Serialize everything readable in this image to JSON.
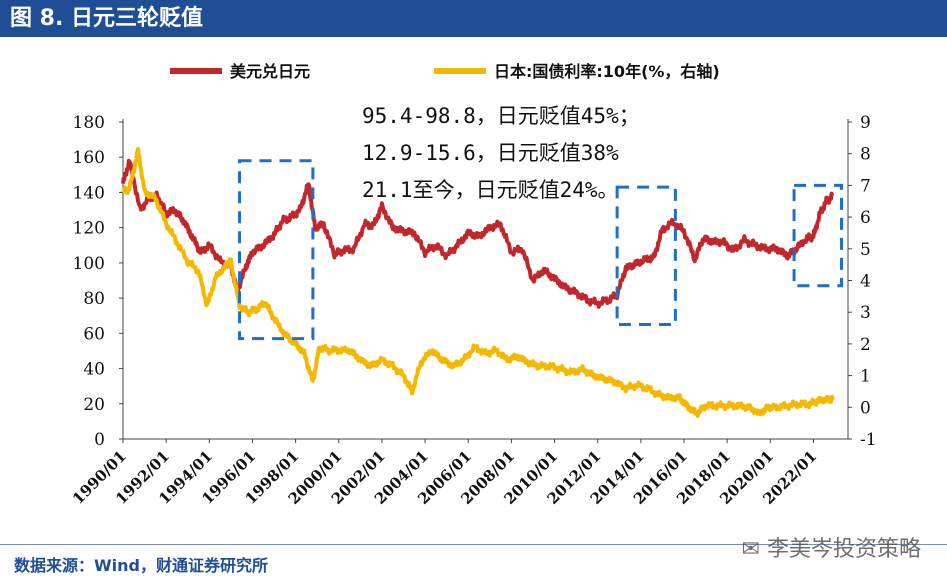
{
  "figure": {
    "title": "图 8. 日元三轮贬值",
    "source": "数据来源：Wind，财通证券研究所",
    "watermark": "李美岑投资策略"
  },
  "chart_data": {
    "type": "line",
    "title": "日元三轮贬值",
    "x_ticks": [
      "1990/01",
      "1992/01",
      "1994/01",
      "1996/01",
      "1998/01",
      "2000/01",
      "2002/01",
      "2004/01",
      "2006/01",
      "2008/01",
      "2010/01",
      "2012/01",
      "2014/01",
      "2016/01",
      "2018/01",
      "2020/01",
      "2022/01"
    ],
    "left_axis": {
      "ylim": [
        0,
        180
      ],
      "ticks": [
        "0",
        "20",
        "40",
        "60",
        "80",
        "100",
        "120",
        "140",
        "160",
        "180"
      ]
    },
    "right_axis": {
      "ylim": [
        -1,
        9
      ],
      "ticks": [
        "-1",
        "0",
        "1",
        "2",
        "3",
        "4",
        "5",
        "6",
        "7",
        "8",
        "9"
      ]
    },
    "series": [
      {
        "name": "美元兑日元",
        "axis": "left",
        "color": "#c0282d",
        "points": [
          [
            1990.0,
            145
          ],
          [
            1990.3,
            158
          ],
          [
            1990.8,
            130
          ],
          [
            1991.2,
            137
          ],
          [
            1991.6,
            138
          ],
          [
            1992.0,
            128
          ],
          [
            1992.4,
            130
          ],
          [
            1992.8,
            124
          ],
          [
            1993.2,
            115
          ],
          [
            1993.6,
            106
          ],
          [
            1994.0,
            110
          ],
          [
            1994.5,
            101
          ],
          [
            1995.0,
            98
          ],
          [
            1995.3,
            84
          ],
          [
            1995.7,
            98
          ],
          [
            1996.0,
            106
          ],
          [
            1996.5,
            110
          ],
          [
            1997.0,
            116
          ],
          [
            1997.4,
            124
          ],
          [
            1997.8,
            126
          ],
          [
            1998.2,
            130
          ],
          [
            1998.6,
            145
          ],
          [
            1998.9,
            120
          ],
          [
            1999.3,
            122
          ],
          [
            1999.8,
            105
          ],
          [
            2000.2,
            107
          ],
          [
            2000.7,
            108
          ],
          [
            2001.2,
            122
          ],
          [
            2001.6,
            121
          ],
          [
            2002.0,
            132
          ],
          [
            2002.5,
            120
          ],
          [
            2003.0,
            118
          ],
          [
            2003.5,
            117
          ],
          [
            2004.0,
            106
          ],
          [
            2004.5,
            110
          ],
          [
            2005.0,
            104
          ],
          [
            2005.5,
            110
          ],
          [
            2006.0,
            117
          ],
          [
            2006.5,
            115
          ],
          [
            2007.0,
            120
          ],
          [
            2007.5,
            122
          ],
          [
            2008.0,
            106
          ],
          [
            2008.5,
            108
          ],
          [
            2009.0,
            90
          ],
          [
            2009.5,
            96
          ],
          [
            2010.0,
            91
          ],
          [
            2010.5,
            86
          ],
          [
            2011.0,
            83
          ],
          [
            2011.5,
            79
          ],
          [
            2012.0,
            77
          ],
          [
            2012.5,
            79
          ],
          [
            2012.9,
            82
          ],
          [
            2013.3,
            97
          ],
          [
            2013.7,
            99
          ],
          [
            2014.2,
            102
          ],
          [
            2014.6,
            103
          ],
          [
            2015.0,
            119
          ],
          [
            2015.5,
            123
          ],
          [
            2016.0,
            118
          ],
          [
            2016.5,
            102
          ],
          [
            2016.9,
            114
          ],
          [
            2017.3,
            112
          ],
          [
            2017.8,
            112
          ],
          [
            2018.3,
            107
          ],
          [
            2018.8,
            113
          ],
          [
            2019.3,
            110
          ],
          [
            2019.8,
            108
          ],
          [
            2020.3,
            108
          ],
          [
            2020.8,
            104
          ],
          [
            2021.2,
            108
          ],
          [
            2021.7,
            114
          ],
          [
            2022.0,
            115
          ],
          [
            2022.3,
            128
          ],
          [
            2022.6,
            135
          ],
          [
            2022.9,
            138
          ]
        ]
      },
      {
        "name": "日本:国债利率:10年(%，右轴)",
        "axis": "right",
        "color": "#f5b800",
        "points": [
          [
            1990.0,
            6.8
          ],
          [
            1990.3,
            6.9
          ],
          [
            1990.7,
            8.1
          ],
          [
            1991.0,
            6.8
          ],
          [
            1991.5,
            6.6
          ],
          [
            1992.0,
            5.8
          ],
          [
            1992.5,
            5.2
          ],
          [
            1993.0,
            4.6
          ],
          [
            1993.5,
            4.3
          ],
          [
            1993.9,
            3.2
          ],
          [
            1994.3,
            4.1
          ],
          [
            1994.8,
            4.5
          ],
          [
            1995.0,
            4.6
          ],
          [
            1995.4,
            3.2
          ],
          [
            1995.8,
            3.0
          ],
          [
            1996.2,
            3.1
          ],
          [
            1996.6,
            3.3
          ],
          [
            1997.0,
            2.8
          ],
          [
            1997.5,
            2.3
          ],
          [
            1998.0,
            2.0
          ],
          [
            1998.4,
            1.7
          ],
          [
            1998.8,
            0.8
          ],
          [
            1999.1,
            1.9
          ],
          [
            1999.5,
            1.8
          ],
          [
            2000.0,
            1.8
          ],
          [
            2000.5,
            1.8
          ],
          [
            2001.0,
            1.5
          ],
          [
            2001.5,
            1.3
          ],
          [
            2002.0,
            1.5
          ],
          [
            2002.5,
            1.3
          ],
          [
            2003.0,
            1.0
          ],
          [
            2003.4,
            0.5
          ],
          [
            2003.8,
            1.4
          ],
          [
            2004.3,
            1.8
          ],
          [
            2004.8,
            1.5
          ],
          [
            2005.3,
            1.3
          ],
          [
            2005.8,
            1.5
          ],
          [
            2006.3,
            1.9
          ],
          [
            2006.8,
            1.7
          ],
          [
            2007.3,
            1.8
          ],
          [
            2007.8,
            1.5
          ],
          [
            2008.3,
            1.6
          ],
          [
            2008.8,
            1.4
          ],
          [
            2009.3,
            1.3
          ],
          [
            2009.8,
            1.3
          ],
          [
            2010.3,
            1.2
          ],
          [
            2010.8,
            1.1
          ],
          [
            2011.3,
            1.2
          ],
          [
            2011.8,
            1.0
          ],
          [
            2012.3,
            0.9
          ],
          [
            2012.8,
            0.8
          ],
          [
            2013.3,
            0.6
          ],
          [
            2013.8,
            0.7
          ],
          [
            2014.3,
            0.6
          ],
          [
            2014.8,
            0.4
          ],
          [
            2015.3,
            0.3
          ],
          [
            2015.8,
            0.3
          ],
          [
            2016.2,
            0.0
          ],
          [
            2016.6,
            -0.2
          ],
          [
            2017.0,
            0.05
          ],
          [
            2017.5,
            0.05
          ],
          [
            2018.0,
            0.05
          ],
          [
            2018.5,
            0.05
          ],
          [
            2019.0,
            0.0
          ],
          [
            2019.5,
            -0.2
          ],
          [
            2019.9,
            0.0
          ],
          [
            2020.3,
            0.0
          ],
          [
            2020.8,
            0.05
          ],
          [
            2021.3,
            0.1
          ],
          [
            2021.8,
            0.1
          ],
          [
            2022.2,
            0.2
          ],
          [
            2022.6,
            0.25
          ],
          [
            2022.9,
            0.25
          ]
        ]
      }
    ],
    "annotations": [
      "95.4-98.8，日元贬值45%；",
      "12.9-15.6，日元贬值38%",
      "21.1至今，日元贬值24%。"
    ],
    "highlight_boxes": [
      {
        "x_start": 1995.4,
        "x_end": 1998.8,
        "y_top": 158,
        "y_bottom": 57
      },
      {
        "x_start": 2012.9,
        "x_end": 2015.6,
        "y_top": 143,
        "y_bottom": 65
      },
      {
        "x_start": 2021.1,
        "x_end": 2023.3,
        "y_top": 144,
        "y_bottom": 87
      }
    ]
  }
}
